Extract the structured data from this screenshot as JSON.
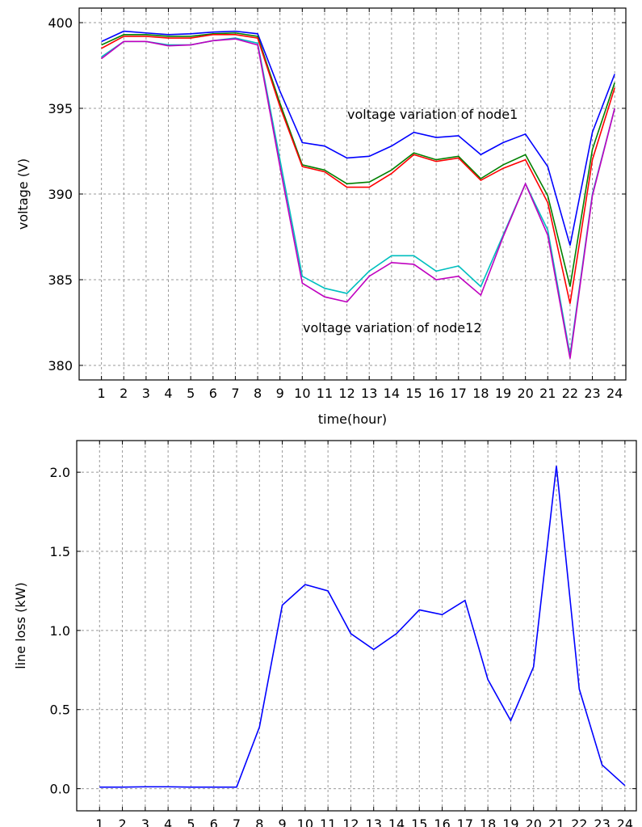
{
  "chart_data": [
    {
      "type": "line",
      "x": [
        1,
        2,
        3,
        4,
        5,
        6,
        7,
        8,
        9,
        10,
        11,
        12,
        13,
        14,
        15,
        16,
        17,
        18,
        19,
        20,
        21,
        22,
        23,
        24
      ],
      "series": [
        {
          "color": "#0000ff",
          "values": [
            398.9,
            399.5,
            399.4,
            399.3,
            399.35,
            399.45,
            399.5,
            399.35,
            396.0,
            393.0,
            392.8,
            392.1,
            392.2,
            392.8,
            393.6,
            393.3,
            393.4,
            392.3,
            393.0,
            393.5,
            391.6,
            387.0,
            393.6,
            397.0
          ]
        },
        {
          "color": "#008000",
          "values": [
            398.7,
            399.3,
            399.3,
            399.2,
            399.2,
            399.35,
            399.4,
            399.2,
            395.3,
            391.7,
            391.4,
            390.6,
            390.7,
            391.4,
            392.4,
            392.0,
            392.2,
            390.9,
            391.7,
            392.3,
            389.9,
            384.6,
            392.6,
            396.5
          ]
        },
        {
          "color": "#ff0000",
          "values": [
            398.5,
            399.2,
            399.2,
            399.1,
            399.1,
            399.3,
            399.3,
            399.1,
            395.1,
            391.6,
            391.3,
            390.4,
            390.4,
            391.2,
            392.3,
            391.9,
            392.1,
            390.8,
            391.5,
            392.0,
            389.5,
            383.6,
            392.0,
            396.2
          ]
        },
        {
          "color": "#00bfbf",
          "values": [
            398.0,
            398.9,
            398.9,
            398.7,
            398.7,
            398.95,
            399.1,
            398.8,
            392.0,
            385.2,
            384.5,
            384.2,
            385.5,
            386.4,
            386.4,
            385.5,
            385.8,
            384.6,
            387.6,
            390.6,
            387.9,
            380.6,
            390.0,
            395.0
          ]
        },
        {
          "color": "#bf00bf",
          "values": [
            397.9,
            398.9,
            398.9,
            398.65,
            398.7,
            398.95,
            399.05,
            398.7,
            391.6,
            384.8,
            384.0,
            383.7,
            385.2,
            386.0,
            385.9,
            385.0,
            385.2,
            384.1,
            387.5,
            390.6,
            387.6,
            380.4,
            389.9,
            395.0
          ]
        }
      ],
      "xlim": [
        0,
        24.5
      ],
      "xticks": [
        1,
        2,
        3,
        4,
        5,
        6,
        7,
        8,
        9,
        10,
        11,
        12,
        13,
        14,
        15,
        16,
        17,
        18,
        19,
        20,
        21,
        22,
        23,
        24
      ],
      "ylim": [
        379.15,
        400.85
      ],
      "yticks": [
        380,
        385,
        390,
        395,
        400
      ],
      "xlabel": "time(hour)",
      "ylabel": "voltage (V)",
      "annotations": [
        "voltage variation of node1",
        "voltage variation of node12"
      ],
      "grid": true
    },
    {
      "type": "line",
      "x": [
        1,
        2,
        3,
        4,
        5,
        6,
        7,
        8,
        9,
        10,
        11,
        12,
        13,
        14,
        15,
        16,
        17,
        18,
        19,
        20,
        21,
        22,
        23,
        24
      ],
      "values": [
        0.01,
        0.01,
        0.012,
        0.012,
        0.01,
        0.01,
        0.01,
        0.39,
        1.16,
        1.29,
        1.25,
        0.98,
        0.88,
        0.98,
        1.13,
        1.1,
        1.19,
        0.69,
        0.43,
        0.77,
        2.04,
        0.63,
        0.15,
        0.02
      ],
      "color": "#0000ff",
      "xlim": [
        0,
        24.5
      ],
      "xticks": [
        1,
        2,
        3,
        4,
        5,
        6,
        7,
        8,
        9,
        10,
        11,
        12,
        13,
        14,
        15,
        16,
        17,
        18,
        19,
        20,
        21,
        22,
        23,
        24
      ],
      "ylim": [
        -0.14,
        2.2
      ],
      "yticks": [
        {
          "value": 0,
          "label": "0.0"
        },
        0.5,
        {
          "value": 1,
          "label": "1.0"
        },
        1.5,
        {
          "value": 2,
          "label": "2.0"
        }
      ],
      "ylabel": "line loss (kW)",
      "grid": true
    }
  ]
}
